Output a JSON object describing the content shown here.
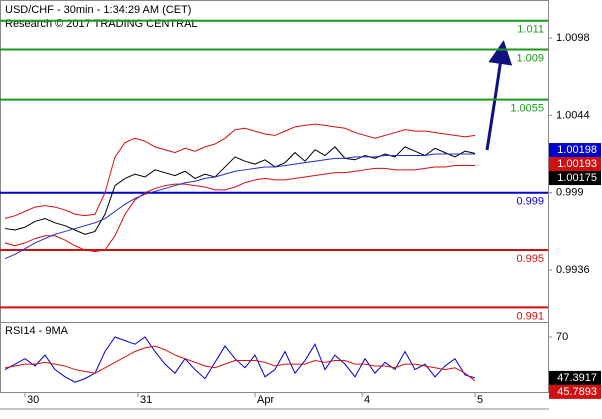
{
  "chart_data": [
    {
      "type": "line",
      "title": "USD/CHF - 30min - 1:34:29 AM (CET)",
      "subtitle": "Research © 2017 TRADING CENTRAL",
      "x": [
        1,
        3,
        5,
        7,
        9,
        11,
        13,
        15,
        17,
        19,
        21,
        23,
        25,
        27,
        29,
        31,
        33,
        35,
        37,
        39,
        41,
        43,
        45,
        47,
        49,
        51,
        53,
        55,
        57,
        59,
        61,
        63,
        65,
        67,
        69,
        71,
        73,
        75,
        77,
        79,
        81,
        83,
        85,
        87,
        89,
        91,
        93,
        95
      ],
      "xlim": [
        0,
        109.6
      ],
      "ylim": [
        0.98998,
        1.01245
      ],
      "yticks": [
        1.0098,
        1.0044,
        0.999,
        0.9936
      ],
      "series": [
        {
          "color": "#000000",
          "values": [
            0.9965,
            0.9964,
            0.9966,
            0.997,
            0.9972,
            0.9969,
            0.9967,
            0.9964,
            0.9961,
            0.9963,
            0.9975,
            0.9995,
            1.0,
            1.0003,
            1.0001,
            1.0006,
            1.0004,
            1.0002,
            1.0005,
            1.0,
            1.0003,
            1.0001,
            1.0008,
            1.0015,
            1.0012,
            1.001,
            1.0013,
            1.0008,
            1.0011,
            1.0018,
            1.0012,
            1.002,
            1.0016,
            1.0022,
            1.0014,
            1.0013,
            1.0016,
            1.0014,
            1.0017,
            1.0015,
            1.0022,
            1.0019,
            1.0016,
            1.0021,
            1.0018,
            1.0015,
            1.0019,
            1.00175
          ]
        },
        {
          "color": "#d01010",
          "values": [
            0.9972,
            0.9974,
            0.9977,
            0.998,
            0.9981,
            0.998,
            0.9978,
            0.9975,
            0.9974,
            0.9975,
            0.999,
            1.0015,
            1.0025,
            1.0028,
            1.0026,
            1.0022,
            1.002,
            1.0018,
            1.0021,
            1.0019,
            1.0022,
            1.0024,
            1.0028,
            1.0034,
            1.0035,
            1.0033,
            1.0031,
            1.003,
            1.0033,
            1.0036,
            1.0037,
            1.0038,
            1.0037,
            1.0036,
            1.0035,
            1.0032,
            1.003,
            1.0028,
            1.003,
            1.0032,
            1.0034,
            1.0033,
            1.0033,
            1.0032,
            1.0031,
            1.003,
            1.0029,
            1.003
          ]
        },
        {
          "color": "#d01010",
          "values": [
            0.9955,
            0.9953,
            0.9955,
            0.9958,
            0.996,
            0.996,
            0.9957,
            0.9953,
            0.995,
            0.9949,
            0.995,
            0.996,
            0.9975,
            0.9985,
            0.999,
            0.9993,
            0.9995,
            0.9996,
            0.9996,
            0.9995,
            0.9994,
            0.9992,
            0.9992,
            0.9994,
            0.9997,
            0.9999,
            1.0,
            0.9999,
            0.9999,
            1.0,
            1.0001,
            1.0002,
            1.0003,
            1.0004,
            1.0004,
            1.0005,
            1.0006,
            1.0007,
            1.0007,
            1.0006,
            1.0006,
            1.0006,
            1.0007,
            1.0008,
            1.0008,
            1.0009,
            1.0009,
            1.0009
          ]
        },
        {
          "color": "#2030c0",
          "values": [
            0.9944,
            0.9947,
            0.9951,
            0.9955,
            0.9958,
            0.9961,
            0.9963,
            0.9965,
            0.9967,
            0.9969,
            0.9972,
            0.9977,
            0.9982,
            0.9986,
            0.9989,
            0.9991,
            0.9993,
            0.9995,
            0.9997,
            0.9998,
            1.0,
            1.0001,
            1.0003,
            1.0005,
            1.0006,
            1.0007,
            1.0008,
            1.0008,
            1.0009,
            1.001,
            1.0011,
            1.0012,
            1.0013,
            1.0014,
            1.0014,
            1.0015,
            1.0015,
            1.0015,
            1.0016,
            1.0016,
            1.0016,
            1.0016,
            1.0016,
            1.0017,
            1.0017,
            1.0017,
            1.0017,
            1.0017
          ]
        }
      ],
      "levels": [
        {
          "value": 1.011,
          "color": "#1a9a1a"
        },
        {
          "value": 1.009,
          "color": "#1a9a1a"
        },
        {
          "value": 1.0055,
          "color": "#1a9a1a"
        },
        {
          "value": 0.999,
          "color": "#0000cc"
        },
        {
          "value": 0.995,
          "color": "#d01010"
        },
        {
          "value": 0.991,
          "color": "#d01010"
        }
      ],
      "markers": [
        {
          "value": 1.00198,
          "color": "#0000cc"
        },
        {
          "value": 1.00193,
          "color": "#d01010"
        },
        {
          "value": 1.00175,
          "color": "#000000"
        }
      ]
    },
    {
      "type": "line",
      "title": "RSI14 - 9MA",
      "x": [
        1,
        3,
        5,
        7,
        9,
        11,
        13,
        15,
        17,
        19,
        21,
        23,
        25,
        27,
        29,
        31,
        33,
        35,
        37,
        39,
        41,
        43,
        45,
        47,
        49,
        51,
        53,
        55,
        57,
        59,
        61,
        63,
        65,
        67,
        69,
        71,
        73,
        75,
        77,
        79,
        81,
        83,
        85,
        87,
        89,
        91,
        93,
        95
      ],
      "xlim": [
        0,
        109.6
      ],
      "xticks": [
        {
          "value": 5,
          "label": "30"
        },
        {
          "value": 27.6,
          "label": "31"
        },
        {
          "value": 51,
          "label": "Apr"
        },
        {
          "value": 72.4,
          "label": "4"
        },
        {
          "value": 95,
          "label": "5"
        }
      ],
      "ylim": [
        39.6,
        78.3
      ],
      "yticks": [
        70
      ],
      "series": [
        {
          "color": "#0000cc",
          "values": [
            52,
            55,
            58,
            54,
            60,
            52,
            48,
            45,
            47,
            50,
            62,
            70,
            68,
            66,
            70,
            62,
            55,
            50,
            58,
            52,
            47,
            56,
            65,
            58,
            53,
            60,
            48,
            52,
            62,
            50,
            57,
            66,
            52,
            60,
            55,
            48,
            58,
            50,
            56,
            52,
            62,
            52,
            55,
            48,
            54,
            58,
            49,
            47.3917
          ]
        },
        {
          "color": "#d01010",
          "values": [
            53,
            54,
            55,
            55,
            56,
            55,
            54,
            52,
            51,
            50,
            53,
            56,
            59,
            62,
            64,
            65,
            63,
            60,
            58,
            56,
            54,
            53,
            55,
            57,
            57,
            57,
            56,
            54,
            55,
            55,
            55,
            57,
            56,
            57,
            57,
            55,
            55,
            54,
            54,
            53,
            55,
            55,
            54,
            53,
            52,
            53,
            50,
            45.7893
          ]
        }
      ],
      "markers": [
        {
          "value": 47.3917,
          "color": "#000000"
        },
        {
          "value": 45.7893,
          "color": "#d01010"
        }
      ]
    }
  ]
}
